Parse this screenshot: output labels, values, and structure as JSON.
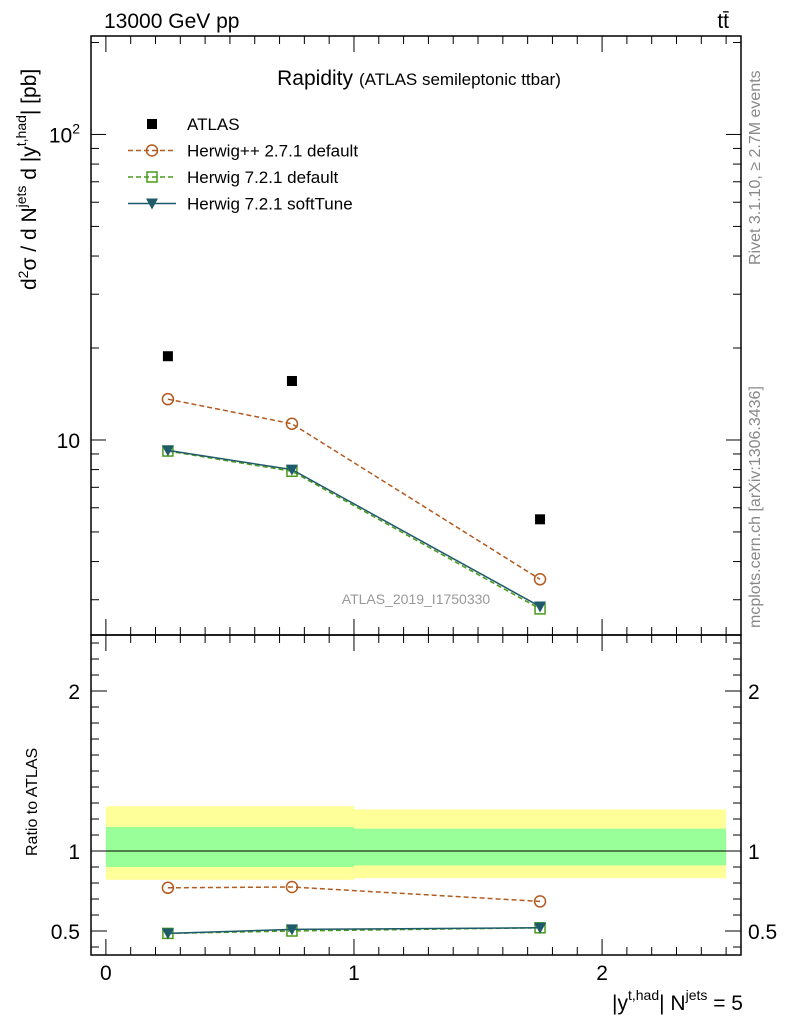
{
  "header": {
    "energy_label": "13000 GeV pp",
    "process_label": "tt̄"
  },
  "side": {
    "rivet_label": "Rivet 3.1.10, ≥ 2.7M events",
    "source_label": "mcplots.cern.ch [arXiv:1306.3436]"
  },
  "chart_data": [
    {
      "type": "line",
      "title": "Rapidity",
      "subtitle": "(ATLAS semileptonic ttbar)",
      "watermark": "ATLAS_2019_I1750330",
      "ylabel": "d²σ / d N^jets d |y^t,had| [pb]",
      "yscale": "log",
      "ylim": [
        2.3,
        210
      ],
      "y_ticks": [
        {
          "value": 10,
          "label": "10"
        },
        {
          "value": 100,
          "label": "10²"
        }
      ],
      "xlim": [
        -0.06,
        2.56
      ],
      "legend_position": "top-left",
      "x": [
        0.25,
        0.75,
        1.75
      ],
      "series": [
        {
          "name": "ATLAS",
          "color": "#000000",
          "marker": "filled-square",
          "line": "none",
          "values": [
            18.8,
            15.6,
            5.5
          ]
        },
        {
          "name": "Herwig++ 2.7.1 default",
          "color": "#b35a1f",
          "marker": "open-circle",
          "line": "dashed",
          "values": [
            13.6,
            11.3,
            3.5
          ]
        },
        {
          "name": "Herwig 7.2.1 default",
          "color": "#4a9a1a",
          "marker": "open-square",
          "line": "dashed",
          "values": [
            9.2,
            7.9,
            2.8
          ]
        },
        {
          "name": "Herwig 7.2.1 softTune",
          "color": "#1e5a6a",
          "marker": "filled-triangle-down",
          "line": "solid",
          "values": [
            9.25,
            8.0,
            2.85
          ]
        }
      ]
    },
    {
      "type": "line",
      "ylabel": "Ratio to ATLAS",
      "xlabel": "|y^t,had| N^jets = 5",
      "ylim": [
        0.35,
        2.35
      ],
      "y_ticks": [
        0.5,
        1,
        2
      ],
      "x_ticks": [
        0,
        1,
        2
      ],
      "xlim": [
        -0.06,
        2.56
      ],
      "reference_line": 1,
      "bands": {
        "bins": [
          [
            0,
            1
          ],
          [
            1,
            2.5
          ]
        ],
        "outer": {
          "color": "#ffff99",
          "low": [
            0.82,
            0.83
          ],
          "high": [
            1.28,
            1.26
          ]
        },
        "inner": {
          "color": "#99ff99",
          "low": [
            0.9,
            0.91
          ],
          "high": [
            1.15,
            1.14
          ]
        }
      },
      "x": [
        0.25,
        0.75,
        1.75
      ],
      "series": [
        {
          "name": "Herwig++ 2.7.1 default",
          "color": "#b35a1f",
          "marker": "open-circle",
          "line": "dashed",
          "values": [
            0.77,
            0.775,
            0.685
          ]
        },
        {
          "name": "Herwig 7.2.1 default",
          "color": "#4a9a1a",
          "marker": "open-square",
          "line": "dashed",
          "values": [
            0.485,
            0.5,
            0.52
          ]
        },
        {
          "name": "Herwig 7.2.1 softTune",
          "color": "#1e5a6a",
          "marker": "filled-triangle-down",
          "line": "solid",
          "values": [
            0.485,
            0.51,
            0.52
          ]
        }
      ]
    }
  ]
}
